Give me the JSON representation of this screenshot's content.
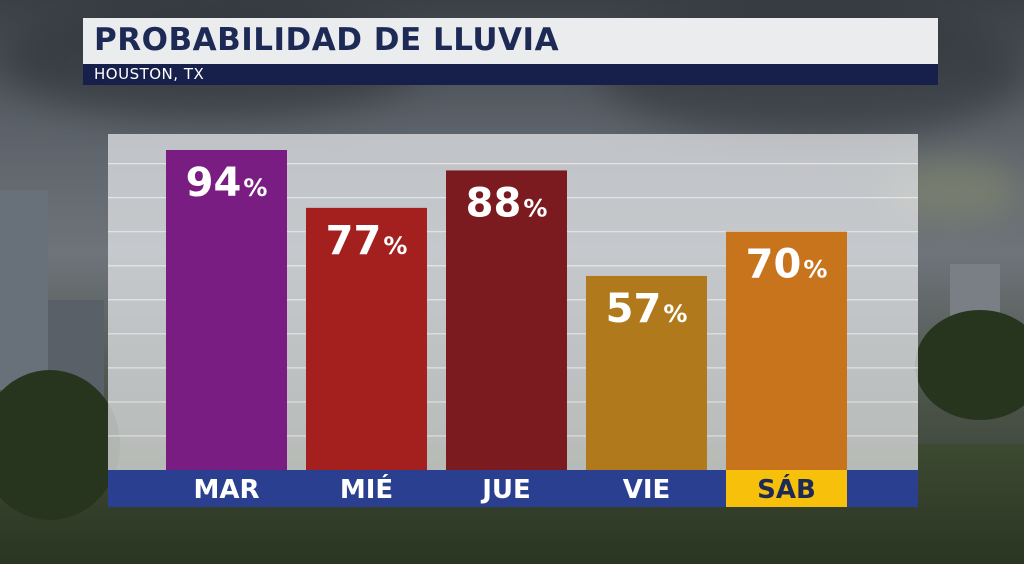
{
  "header": {
    "title": "PROBABILIDAD DE LLUVIA",
    "subtitle": "HOUSTON, TX"
  },
  "chart_data": {
    "type": "bar",
    "title": "PROBABILIDAD DE LLUVIA",
    "subtitle": "HOUSTON, TX",
    "categories": [
      "MAR",
      "MIÉ",
      "JUE",
      "VIE",
      "SÁB"
    ],
    "values": [
      94,
      77,
      88,
      57,
      70
    ],
    "value_suffix": "%",
    "ylim": [
      0,
      100
    ],
    "grid": true,
    "bar_colors": [
      "#7a1d82",
      "#a3201f",
      "#7c1b1f",
      "#b07a1c",
      "#c8741c"
    ],
    "highlighted_category": "SÁB",
    "highlight_color": "#f6c00b",
    "axis_band_color": "#2a3f8f"
  }
}
